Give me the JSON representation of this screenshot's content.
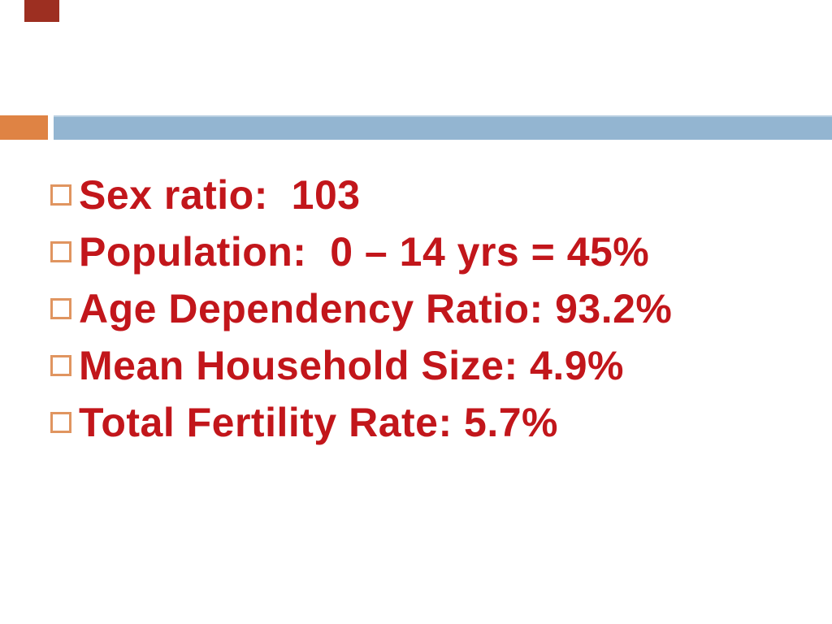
{
  "slide": {
    "type": "presentation-slide",
    "background_color": "#ffffff",
    "decorations": {
      "corner_block_color": "#9d2f21",
      "banner_orange_color": "#df8344",
      "banner_blue_color": "#93b5d1",
      "bullet_outline_color": "#e09560",
      "text_color": "#c2161b"
    },
    "bullets": [
      {
        "label": "Sex ratio:  103"
      },
      {
        "label": "Population:  0 – 14 yrs = 45%"
      },
      {
        "label": "Age Dependency Ratio: 93.2%"
      },
      {
        "label": "Mean Household Size: 4.9%"
      },
      {
        "label": "Total Fertility Rate: 5.7%"
      }
    ]
  }
}
